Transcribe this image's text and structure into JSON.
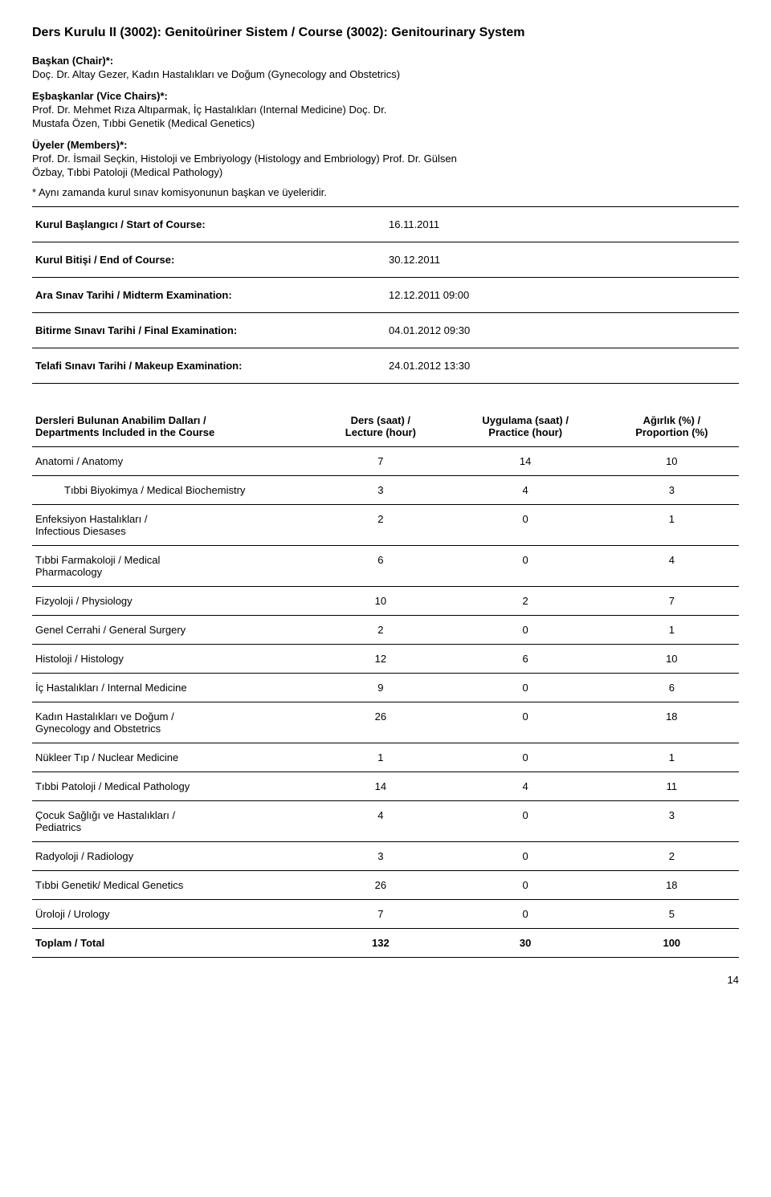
{
  "title": "Ders Kurulu II (3002): Genitoüriner Sistem / Course (3002): Genitourinary System",
  "chair_label": "Başkan (Chair)*:",
  "chair_person": "Doç. Dr. Altay Gezer, Kadın Hastalıkları ve Doğum (Gynecology and Obstetrics)",
  "vicechair_label": "Eşbaşkanlar (Vice Chairs)*:",
  "vicechairs": [
    "Prof. Dr. Mehmet Rıza Altıparmak, İç Hastalıkları (Internal Medicine) Doç. Dr.",
    "Mustafa Özen, Tıbbi Genetik (Medical Genetics)"
  ],
  "members_label": "Üyeler (Members)*:",
  "members": [
    "Prof. Dr. İsmail Seçkin, Histoloji ve Embriyology (Histology and Embriology) Prof. Dr. Gülsen",
    "Özbay, Tıbbi Patoloji (Medical Pathology)"
  ],
  "note": "* Aynı zamanda kurul sınav komisyonunun başkan ve üyeleridir.",
  "kv_rows": [
    {
      "label": "Kurul Başlangıcı / Start of Course:",
      "value": "16.11.2011"
    },
    {
      "label": "Kurul Bitişi / End of Course:",
      "value": "30.12.2011"
    },
    {
      "label": "Ara Sınav Tarihi / Midterm Examination:",
      "value": "12.12.2011 09:00"
    },
    {
      "label": "Bitirme Sınavı Tarihi / Final Examination:",
      "value": "04.01.2012 09:30"
    },
    {
      "label": "Telafi Sınavı Tarihi / Makeup Examination:",
      "value": "24.01.2012 13:30"
    }
  ],
  "dept_header": {
    "col1a": "Dersleri Bulunan Anabilim Dalları /",
    "col1b": "Departments Included in the Course",
    "col2a": "Ders (saat) /",
    "col2b": "Lecture (hour)",
    "col3a": "Uygulama (saat) /",
    "col3b": "Practice (hour)",
    "col4a": "Ağırlık (%) /",
    "col4b": "Proportion (%)"
  },
  "dept_rows": [
    {
      "name": "Anatomi / Anatomy",
      "lecture": "7",
      "practice": "14",
      "prop": "10",
      "indent": false
    },
    {
      "name": "Tıbbi Biyokimya / Medical Biochemistry",
      "lecture": "3",
      "practice": "4",
      "prop": "3",
      "indent": true
    },
    {
      "name": "Enfeksiyon Hastalıkları /\nInfectious Diesases",
      "lecture": "2",
      "practice": "0",
      "prop": "1",
      "indent": false
    },
    {
      "name": "Tıbbi Farmakoloji / Medical\nPharmacology",
      "lecture": "6",
      "practice": "0",
      "prop": "4",
      "indent": false
    },
    {
      "name": "Fizyoloji / Physiology",
      "lecture": "10",
      "practice": "2",
      "prop": "7",
      "indent": false
    },
    {
      "name": "Genel Cerrahi / General Surgery",
      "lecture": "2",
      "practice": "0",
      "prop": "1",
      "indent": false
    },
    {
      "name": "Histoloji / Histology",
      "lecture": "12",
      "practice": "6",
      "prop": "10",
      "indent": false
    },
    {
      "name": "İç Hastalıkları / Internal Medicine",
      "lecture": "9",
      "practice": "0",
      "prop": "6",
      "indent": false
    },
    {
      "name": "Kadın Hastalıkları ve Doğum /\nGynecology and Obstetrics",
      "lecture": "26",
      "practice": "0",
      "prop": "18",
      "indent": false
    },
    {
      "name": "Nükleer Tıp / Nuclear Medicine",
      "lecture": "1",
      "practice": "0",
      "prop": "1",
      "indent": false
    },
    {
      "name": "Tıbbi Patoloji / Medical Pathology",
      "lecture": "14",
      "practice": "4",
      "prop": "11",
      "indent": false
    },
    {
      "name": "Çocuk Sağlığı ve Hastalıkları /\nPediatrics",
      "lecture": "4",
      "practice": "0",
      "prop": "3",
      "indent": false
    },
    {
      "name": "Radyoloji / Radiology",
      "lecture": "3",
      "practice": "0",
      "prop": "2",
      "indent": false
    },
    {
      "name": "Tıbbi Genetik/ Medical Genetics",
      "lecture": "26",
      "practice": "0",
      "prop": "18",
      "indent": false
    },
    {
      "name": "Üroloji / Urology",
      "lecture": "7",
      "practice": "0",
      "prop": "5",
      "indent": false
    },
    {
      "name": "Toplam / Total",
      "lecture": "132",
      "practice": "30",
      "prop": "100",
      "indent": false,
      "bold": true
    }
  ],
  "page_number": "14"
}
